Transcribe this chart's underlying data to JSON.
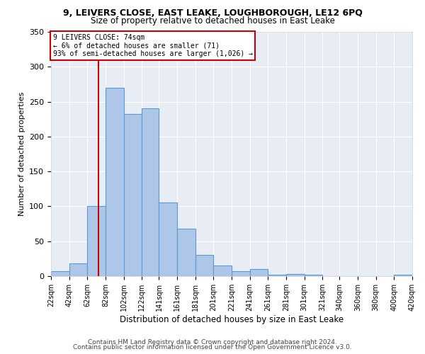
{
  "title1": "9, LEIVERS CLOSE, EAST LEAKE, LOUGHBOROUGH, LE12 6PQ",
  "title2": "Size of property relative to detached houses in East Leake",
  "xlabel": "Distribution of detached houses by size in East Leake",
  "ylabel": "Number of detached properties",
  "annotation_title": "9 LEIVERS CLOSE: 74sqm",
  "annotation_line1": "← 6% of detached houses are smaller (71)",
  "annotation_line2": "93% of semi-detached houses are larger (1,026) →",
  "property_size": 74,
  "bin_edges": [
    22,
    42,
    62,
    82,
    102,
    122,
    141,
    161,
    181,
    201,
    221,
    241,
    261,
    281,
    301,
    321,
    340,
    360,
    380,
    400,
    420
  ],
  "bar_heights": [
    7,
    18,
    100,
    270,
    232,
    240,
    106,
    68,
    30,
    15,
    7,
    10,
    2,
    3,
    2,
    0,
    0,
    0,
    0,
    2
  ],
  "bar_color": "#aec6e8",
  "bar_edge_color": "#5b9bd5",
  "vline_color": "#cc0000",
  "annotation_box_color": "#cc0000",
  "background_color": "#e8edf5",
  "grid_color": "#ffffff",
  "footer_line1": "Contains HM Land Registry data © Crown copyright and database right 2024.",
  "footer_line2": "Contains public sector information licensed under the Open Government Licence v3.0.",
  "ylim": [
    0,
    350
  ],
  "yticks": [
    0,
    50,
    100,
    150,
    200,
    250,
    300,
    350
  ]
}
